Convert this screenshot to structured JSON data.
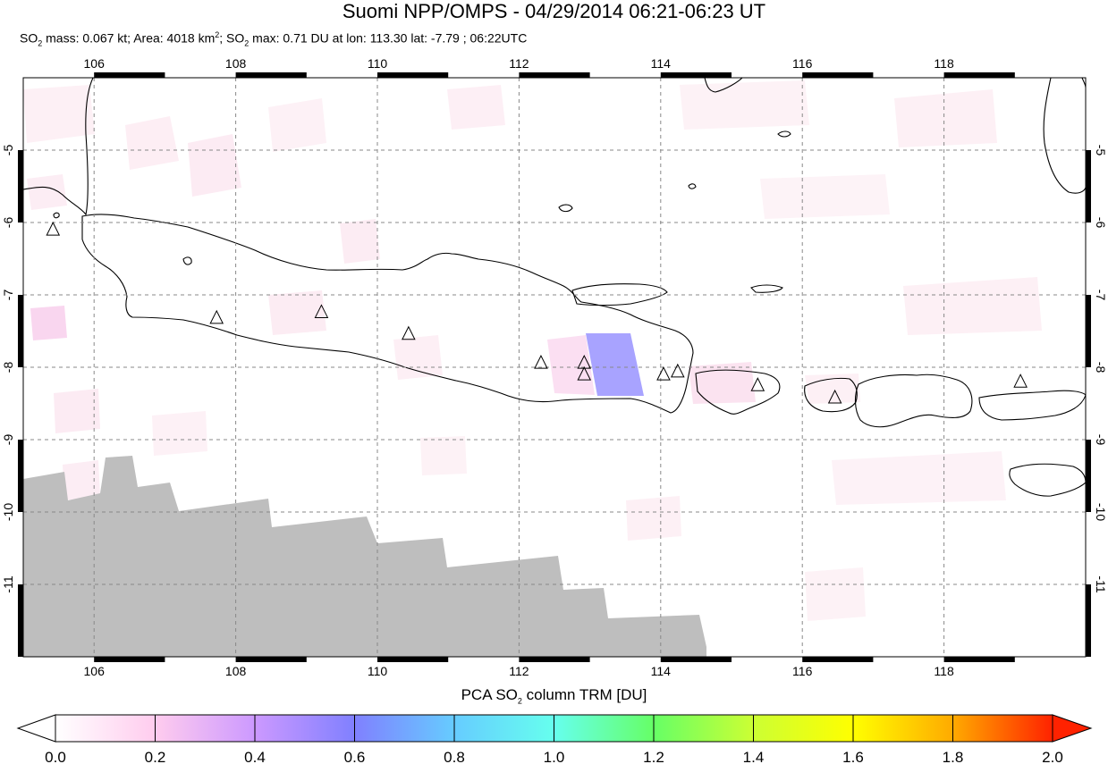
{
  "header": {
    "title": "Suomi NPP/OMPS - 04/29/2014 06:21-06:23 UT",
    "stats": {
      "so2_mass_prefix": "SO",
      "so2_mass_sub": "2",
      "so2_mass_text": " mass: 0.067 kt; Area: 4018 km",
      "area_sup": "2",
      "so2_max_sep": "; SO",
      "so2_max_sub": "2",
      "so2_max_text": " max: 0.71 DU at lon: 113.30 lat: -7.79 ; 06:22UTC"
    }
  },
  "map": {
    "lon_range": [
      105.0,
      120.0
    ],
    "lat_range": [
      -12.0,
      -4.0
    ],
    "lon_ticks": [
      "106",
      "108",
      "110",
      "112",
      "114",
      "116",
      "118"
    ],
    "lat_ticks": [
      "-5",
      "-6",
      "-7",
      "-8",
      "-9",
      "-10",
      "-11"
    ],
    "grid": "dashed",
    "no_data_color": "#bebebe",
    "coastline_color": "#000000",
    "volcanoes": [
      {
        "lon": 105.42,
        "lat": -6.1
      },
      {
        "lon": 107.73,
        "lat": -7.32
      },
      {
        "lon": 109.21,
        "lat": -7.24
      },
      {
        "lon": 110.44,
        "lat": -7.54
      },
      {
        "lon": 112.31,
        "lat": -7.94
      },
      {
        "lon": 112.92,
        "lat": -7.94
      },
      {
        "lon": 112.92,
        "lat": -8.1
      },
      {
        "lon": 114.04,
        "lat": -8.1
      },
      {
        "lon": 114.24,
        "lat": -8.06
      },
      {
        "lon": 115.37,
        "lat": -8.25
      },
      {
        "lon": 116.46,
        "lat": -8.42
      },
      {
        "lon": 119.08,
        "lat": -8.2
      }
    ],
    "so2_peak_pixel": {
      "lon": 113.3,
      "lat": -7.79,
      "value": 0.71
    }
  },
  "colorbar": {
    "title_prefix": "PCA SO",
    "title_sub": "2",
    "title_suffix": " column TRM [DU]",
    "range": [
      0.0,
      2.0
    ],
    "tick_labels": [
      "0.0",
      "0.2",
      "0.4",
      "0.6",
      "0.8",
      "1.0",
      "1.2",
      "1.4",
      "1.6",
      "1.8",
      "2.0"
    ],
    "colors": [
      "#ffffff",
      "#ffccee",
      "#cc99ff",
      "#8080ff",
      "#66ccff",
      "#66ffee",
      "#66ff66",
      "#ccff33",
      "#ffff00",
      "#ffaa00",
      "#ff2200"
    ]
  }
}
